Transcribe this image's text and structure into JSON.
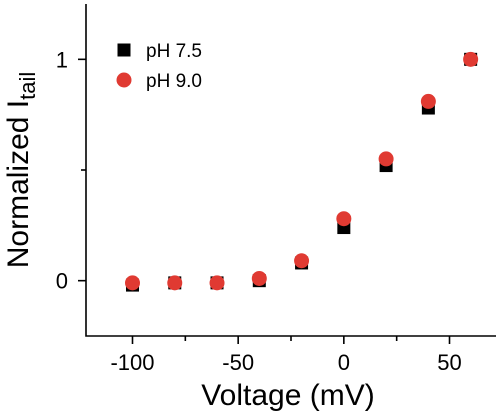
{
  "chart_data": {
    "type": "scatter",
    "xlabel": "Voltage (mV)",
    "ylabel": {
      "main": "Normalized I",
      "subscript": "tail"
    },
    "xlim": [
      -122,
      72
    ],
    "ylim": [
      -0.25,
      1.25
    ],
    "x_ticks": [
      -100,
      -50,
      0,
      50
    ],
    "x_tick_labels": [
      "-100",
      "-50",
      "0",
      "50"
    ],
    "x_minor_ticks": [
      -75,
      -25,
      25
    ],
    "y_ticks": [
      0,
      1
    ],
    "y_tick_labels": [
      "0",
      "1"
    ],
    "y_minor_ticks": [
      0.5
    ],
    "legend_position": "top-left",
    "series": [
      {
        "name": "pH 7.5",
        "marker": "square",
        "color": "#000000",
        "x": [
          -100,
          -80,
          -60,
          -40,
          -20,
          0,
          20,
          40,
          60
        ],
        "y": [
          -0.02,
          -0.01,
          -0.01,
          0.0,
          0.08,
          0.24,
          0.52,
          0.78,
          1.0
        ]
      },
      {
        "name": "pH 9.0",
        "marker": "circle",
        "color": "#e03a32",
        "x": [
          -100,
          -80,
          -60,
          -40,
          -20,
          0,
          20,
          40,
          60
        ],
        "y": [
          -0.01,
          -0.01,
          -0.01,
          0.01,
          0.09,
          0.28,
          0.55,
          0.81,
          1.0
        ]
      }
    ]
  }
}
